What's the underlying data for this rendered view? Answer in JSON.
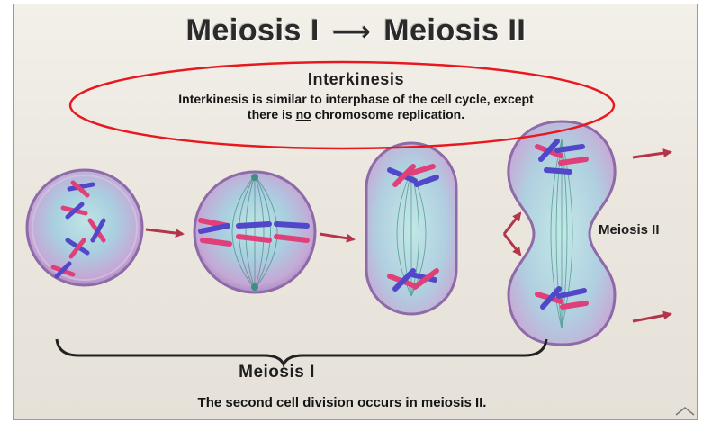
{
  "title": {
    "left": "Meiosis I",
    "arrow": "⟶",
    "right": "Meiosis II"
  },
  "interkinesis": {
    "heading": "Interkinesis",
    "line1": "Interkinesis is similar to interphase of the cell cycle, except",
    "line2_before": "there is",
    "line2_emphasis": "no",
    "line2_after": "chromosome replication."
  },
  "labels": {
    "meiosis_ii": "Meiosis II",
    "meiosis_i": "Meiosis I",
    "caption": "The second cell division occurs in meiosis II."
  },
  "colors": {
    "highlight_ellipse": "#e8191e",
    "arrow": "#b3354a",
    "cell_membrane": "#b08fbf",
    "chromosome_pink": "#e0407a",
    "chromosome_blue": "#5048c8",
    "spindle": "#3d8f83"
  }
}
